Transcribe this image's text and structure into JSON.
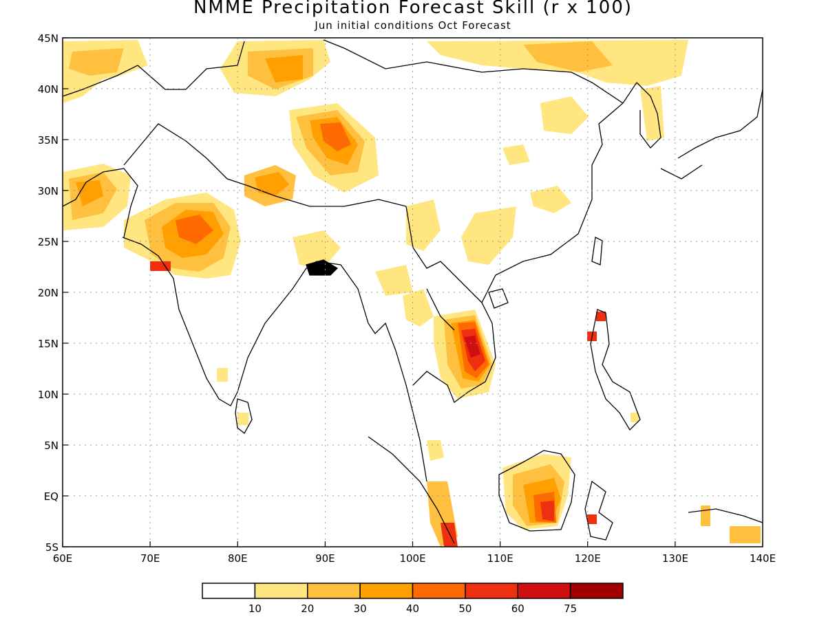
{
  "title": "NMME Precipitation Forecast Skill (r x 100)",
  "subtitle": "Jun initial conditions  Oct Forecast",
  "chart_data": {
    "type": "map",
    "title": "NMME Precipitation Forecast Skill (r x 100)",
    "subtitle": "Jun initial conditions  Oct Forecast",
    "x_range_deg_e": [
      60,
      140
    ],
    "y_range_deg_n": [
      -5,
      45
    ],
    "x_ticks": [
      "60E",
      "70E",
      "80E",
      "90E",
      "100E",
      "110E",
      "120E",
      "130E",
      "140E"
    ],
    "y_ticks": [
      "45N",
      "40N",
      "35N",
      "30N",
      "25N",
      "20N",
      "15N",
      "10N",
      "5N",
      "EQ",
      "5S"
    ],
    "grid": true,
    "colorbar": {
      "labels": [
        "10",
        "20",
        "30",
        "40",
        "50",
        "60",
        "75"
      ],
      "colors": [
        "#ffffff",
        "#ffe680",
        "#ffc040",
        "#ffa000",
        "#ff6a00",
        "#ee3010",
        "#d01010",
        "#a00000"
      ]
    },
    "regions": [
      {
        "lon": 63,
        "lat": 42,
        "level": 2
      },
      {
        "lon": 85,
        "lat": 42,
        "level": 3
      },
      {
        "lon": 92,
        "lat": 35,
        "level": 4
      },
      {
        "lon": 75,
        "lat": 27,
        "level": 4
      },
      {
        "lon": 63,
        "lat": 30,
        "level": 3
      },
      {
        "lon": 83,
        "lat": 30,
        "level": 3
      },
      {
        "lon": 107,
        "lat": 14,
        "level": 6
      },
      {
        "lon": 114,
        "lat": -2,
        "level": 5
      },
      {
        "lon": 115,
        "lat": 43,
        "level": 2
      },
      {
        "lon": 120,
        "lat": 36,
        "level": 1
      },
      {
        "lon": 103,
        "lat": 26,
        "level": 1
      },
      {
        "lon": 104,
        "lat": 1,
        "level": 2
      }
    ]
  }
}
